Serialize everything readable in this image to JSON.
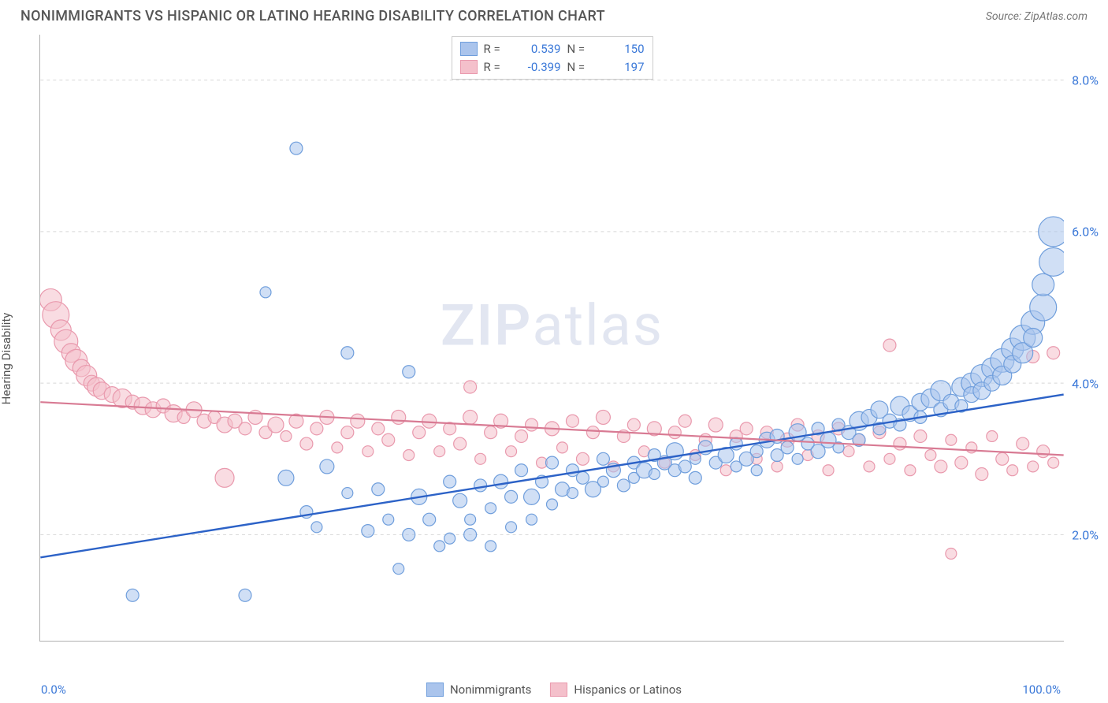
{
  "header": {
    "title": "NONIMMIGRANTS VS HISPANIC OR LATINO HEARING DISABILITY CORRELATION CHART",
    "source_label": "Source:",
    "source_name": "ZipAtlas.com"
  },
  "watermark": {
    "part1": "ZIP",
    "part2": "atlas"
  },
  "chart": {
    "type": "scatter",
    "ylabel": "Hearing Disability",
    "xlim": [
      0,
      100
    ],
    "ylim": [
      0.6,
      8.6
    ],
    "x_ticks": [
      0,
      20,
      40,
      60,
      80,
      100
    ],
    "x_tick_labels_shown": {
      "min": "0.0%",
      "max": "100.0%"
    },
    "y_ticks": [
      2.0,
      4.0,
      6.0,
      8.0
    ],
    "y_tick_labels": [
      "2.0%",
      "4.0%",
      "6.0%",
      "8.0%"
    ],
    "grid_color": "#d8d8d8",
    "grid_dash": "4,4",
    "axis_color": "#b0b0b0",
    "background_color": "#ffffff",
    "label_color": "#555555",
    "tick_label_color": "#3a78d8"
  },
  "legend_top": {
    "rows": [
      {
        "swatch_fill": "#aac4ec",
        "swatch_border": "#6f9edc",
        "r_label": "R =",
        "r_value": "0.539",
        "n_label": "N =",
        "n_value": "150"
      },
      {
        "swatch_fill": "#f4c0cb",
        "swatch_border": "#e999ad",
        "r_label": "R =",
        "r_value": "-0.399",
        "n_label": "N =",
        "n_value": "197"
      }
    ]
  },
  "legend_bottom": {
    "items": [
      {
        "swatch_fill": "#aac4ec",
        "swatch_border": "#6f9edc",
        "label": "Nonimmigrants"
      },
      {
        "swatch_fill": "#f4c0cb",
        "swatch_border": "#e999ad",
        "label": "Hispanics or Latinos"
      }
    ]
  },
  "series": [
    {
      "name": "Nonimmigrants",
      "fill": "#aac4ec",
      "fill_opacity": 0.55,
      "stroke": "#6f9edc",
      "stroke_width": 1.2,
      "trend": {
        "color": "#2c62c7",
        "width": 2.4,
        "y_at_x0": 1.7,
        "y_at_x100": 3.85
      },
      "points": [
        {
          "x": 9,
          "y": 1.2,
          "r": 8
        },
        {
          "x": 20,
          "y": 1.2,
          "r": 8
        },
        {
          "x": 25,
          "y": 7.1,
          "r": 8
        },
        {
          "x": 22,
          "y": 5.2,
          "r": 7
        },
        {
          "x": 24,
          "y": 2.75,
          "r": 10
        },
        {
          "x": 26,
          "y": 2.3,
          "r": 8
        },
        {
          "x": 27,
          "y": 2.1,
          "r": 7
        },
        {
          "x": 28,
          "y": 2.9,
          "r": 9
        },
        {
          "x": 30,
          "y": 4.4,
          "r": 8
        },
        {
          "x": 30,
          "y": 2.55,
          "r": 7
        },
        {
          "x": 32,
          "y": 2.05,
          "r": 8
        },
        {
          "x": 33,
          "y": 2.6,
          "r": 8
        },
        {
          "x": 34,
          "y": 2.2,
          "r": 7
        },
        {
          "x": 35,
          "y": 1.55,
          "r": 7
        },
        {
          "x": 36,
          "y": 2.0,
          "r": 8
        },
        {
          "x": 36,
          "y": 4.15,
          "r": 8
        },
        {
          "x": 37,
          "y": 2.5,
          "r": 10
        },
        {
          "x": 38,
          "y": 2.2,
          "r": 8
        },
        {
          "x": 39,
          "y": 1.85,
          "r": 7
        },
        {
          "x": 40,
          "y": 2.7,
          "r": 8
        },
        {
          "x": 40,
          "y": 1.95,
          "r": 7
        },
        {
          "x": 41,
          "y": 2.45,
          "r": 9
        },
        {
          "x": 42,
          "y": 2.2,
          "r": 7
        },
        {
          "x": 42,
          "y": 2.0,
          "r": 8
        },
        {
          "x": 43,
          "y": 2.65,
          "r": 8
        },
        {
          "x": 44,
          "y": 2.35,
          "r": 7
        },
        {
          "x": 44,
          "y": 1.85,
          "r": 7
        },
        {
          "x": 45,
          "y": 2.7,
          "r": 9
        },
        {
          "x": 46,
          "y": 2.5,
          "r": 8
        },
        {
          "x": 46,
          "y": 2.1,
          "r": 7
        },
        {
          "x": 47,
          "y": 2.85,
          "r": 8
        },
        {
          "x": 48,
          "y": 2.5,
          "r": 10
        },
        {
          "x": 48,
          "y": 2.2,
          "r": 7
        },
        {
          "x": 49,
          "y": 2.7,
          "r": 8
        },
        {
          "x": 50,
          "y": 2.95,
          "r": 8
        },
        {
          "x": 50,
          "y": 2.4,
          "r": 7
        },
        {
          "x": 51,
          "y": 2.6,
          "r": 9
        },
        {
          "x": 52,
          "y": 2.85,
          "r": 8
        },
        {
          "x": 52,
          "y": 2.55,
          "r": 7
        },
        {
          "x": 53,
          "y": 2.75,
          "r": 8
        },
        {
          "x": 54,
          "y": 2.6,
          "r": 10
        },
        {
          "x": 55,
          "y": 3.0,
          "r": 8
        },
        {
          "x": 55,
          "y": 2.7,
          "r": 7
        },
        {
          "x": 56,
          "y": 2.85,
          "r": 9
        },
        {
          "x": 57,
          "y": 2.65,
          "r": 8
        },
        {
          "x": 58,
          "y": 2.95,
          "r": 8
        },
        {
          "x": 58,
          "y": 2.75,
          "r": 7
        },
        {
          "x": 59,
          "y": 2.85,
          "r": 10
        },
        {
          "x": 60,
          "y": 3.05,
          "r": 8
        },
        {
          "x": 60,
          "y": 2.8,
          "r": 7
        },
        {
          "x": 61,
          "y": 2.95,
          "r": 9
        },
        {
          "x": 62,
          "y": 2.85,
          "r": 8
        },
        {
          "x": 62,
          "y": 3.1,
          "r": 11
        },
        {
          "x": 63,
          "y": 2.9,
          "r": 8
        },
        {
          "x": 64,
          "y": 3.0,
          "r": 7
        },
        {
          "x": 64,
          "y": 2.75,
          "r": 8
        },
        {
          "x": 65,
          "y": 3.15,
          "r": 9
        },
        {
          "x": 66,
          "y": 2.95,
          "r": 8
        },
        {
          "x": 67,
          "y": 3.05,
          "r": 10
        },
        {
          "x": 68,
          "y": 2.9,
          "r": 7
        },
        {
          "x": 68,
          "y": 3.2,
          "r": 8
        },
        {
          "x": 69,
          "y": 3.0,
          "r": 9
        },
        {
          "x": 70,
          "y": 3.1,
          "r": 8
        },
        {
          "x": 70,
          "y": 2.85,
          "r": 7
        },
        {
          "x": 71,
          "y": 3.25,
          "r": 10
        },
        {
          "x": 72,
          "y": 3.05,
          "r": 8
        },
        {
          "x": 72,
          "y": 3.3,
          "r": 9
        },
        {
          "x": 73,
          "y": 3.15,
          "r": 8
        },
        {
          "x": 74,
          "y": 3.0,
          "r": 7
        },
        {
          "x": 74,
          "y": 3.35,
          "r": 11
        },
        {
          "x": 75,
          "y": 3.2,
          "r": 8
        },
        {
          "x": 76,
          "y": 3.1,
          "r": 9
        },
        {
          "x": 76,
          "y": 3.4,
          "r": 8
        },
        {
          "x": 77,
          "y": 3.25,
          "r": 10
        },
        {
          "x": 78,
          "y": 3.45,
          "r": 8
        },
        {
          "x": 78,
          "y": 3.15,
          "r": 7
        },
        {
          "x": 79,
          "y": 3.35,
          "r": 9
        },
        {
          "x": 80,
          "y": 3.5,
          "r": 12
        },
        {
          "x": 80,
          "y": 3.25,
          "r": 8
        },
        {
          "x": 81,
          "y": 3.55,
          "r": 10
        },
        {
          "x": 82,
          "y": 3.4,
          "r": 8
        },
        {
          "x": 82,
          "y": 3.65,
          "r": 11
        },
        {
          "x": 83,
          "y": 3.5,
          "r": 9
        },
        {
          "x": 84,
          "y": 3.7,
          "r": 12
        },
        {
          "x": 84,
          "y": 3.45,
          "r": 8
        },
        {
          "x": 85,
          "y": 3.6,
          "r": 10
        },
        {
          "x": 86,
          "y": 3.75,
          "r": 11
        },
        {
          "x": 86,
          "y": 3.55,
          "r": 8
        },
        {
          "x": 87,
          "y": 3.8,
          "r": 12
        },
        {
          "x": 88,
          "y": 3.65,
          "r": 9
        },
        {
          "x": 88,
          "y": 3.9,
          "r": 13
        },
        {
          "x": 89,
          "y": 3.75,
          "r": 10
        },
        {
          "x": 90,
          "y": 3.95,
          "r": 12
        },
        {
          "x": 90,
          "y": 3.7,
          "r": 8
        },
        {
          "x": 91,
          "y": 4.0,
          "r": 13
        },
        {
          "x": 91,
          "y": 3.85,
          "r": 10
        },
        {
          "x": 92,
          "y": 4.1,
          "r": 14
        },
        {
          "x": 92,
          "y": 3.9,
          "r": 11
        },
        {
          "x": 93,
          "y": 4.2,
          "r": 13
        },
        {
          "x": 93,
          "y": 4.0,
          "r": 10
        },
        {
          "x": 94,
          "y": 4.3,
          "r": 15
        },
        {
          "x": 94,
          "y": 4.1,
          "r": 12
        },
        {
          "x": 95,
          "y": 4.45,
          "r": 14
        },
        {
          "x": 95,
          "y": 4.25,
          "r": 11
        },
        {
          "x": 96,
          "y": 4.6,
          "r": 16
        },
        {
          "x": 96,
          "y": 4.4,
          "r": 13
        },
        {
          "x": 97,
          "y": 4.8,
          "r": 15
        },
        {
          "x": 97,
          "y": 4.6,
          "r": 12
        },
        {
          "x": 98,
          "y": 5.0,
          "r": 17
        },
        {
          "x": 98,
          "y": 5.3,
          "r": 14
        },
        {
          "x": 99,
          "y": 5.6,
          "r": 18
        },
        {
          "x": 99,
          "y": 6.0,
          "r": 19
        }
      ]
    },
    {
      "name": "Hispanics or Latinos",
      "fill": "#f4c0cb",
      "fill_opacity": 0.55,
      "stroke": "#e999ad",
      "stroke_width": 1.2,
      "trend": {
        "color": "#d87a93",
        "width": 2.2,
        "y_at_x0": 3.75,
        "y_at_x100": 3.05
      },
      "points": [
        {
          "x": 1,
          "y": 5.1,
          "r": 14
        },
        {
          "x": 1.5,
          "y": 4.9,
          "r": 17
        },
        {
          "x": 2,
          "y": 4.7,
          "r": 13
        },
        {
          "x": 2.5,
          "y": 4.55,
          "r": 15
        },
        {
          "x": 3,
          "y": 4.4,
          "r": 12
        },
        {
          "x": 3.5,
          "y": 4.3,
          "r": 14
        },
        {
          "x": 4,
          "y": 4.2,
          "r": 11
        },
        {
          "x": 4.5,
          "y": 4.1,
          "r": 13
        },
        {
          "x": 5,
          "y": 4.0,
          "r": 10
        },
        {
          "x": 5.5,
          "y": 3.95,
          "r": 12
        },
        {
          "x": 6,
          "y": 3.9,
          "r": 11
        },
        {
          "x": 7,
          "y": 3.85,
          "r": 10
        },
        {
          "x": 8,
          "y": 3.8,
          "r": 12
        },
        {
          "x": 9,
          "y": 3.75,
          "r": 9
        },
        {
          "x": 10,
          "y": 3.7,
          "r": 11
        },
        {
          "x": 11,
          "y": 3.65,
          "r": 10
        },
        {
          "x": 12,
          "y": 3.7,
          "r": 9
        },
        {
          "x": 13,
          "y": 3.6,
          "r": 11
        },
        {
          "x": 14,
          "y": 3.55,
          "r": 8
        },
        {
          "x": 15,
          "y": 3.65,
          "r": 10
        },
        {
          "x": 16,
          "y": 3.5,
          "r": 9
        },
        {
          "x": 17,
          "y": 3.55,
          "r": 8
        },
        {
          "x": 18,
          "y": 3.45,
          "r": 10
        },
        {
          "x": 18,
          "y": 2.75,
          "r": 12
        },
        {
          "x": 19,
          "y": 3.5,
          "r": 9
        },
        {
          "x": 20,
          "y": 3.4,
          "r": 8
        },
        {
          "x": 21,
          "y": 3.55,
          "r": 9
        },
        {
          "x": 22,
          "y": 3.35,
          "r": 8
        },
        {
          "x": 23,
          "y": 3.45,
          "r": 10
        },
        {
          "x": 24,
          "y": 3.3,
          "r": 7
        },
        {
          "x": 25,
          "y": 3.5,
          "r": 9
        },
        {
          "x": 26,
          "y": 3.2,
          "r": 8
        },
        {
          "x": 27,
          "y": 3.4,
          "r": 8
        },
        {
          "x": 28,
          "y": 3.55,
          "r": 9
        },
        {
          "x": 29,
          "y": 3.15,
          "r": 7
        },
        {
          "x": 30,
          "y": 3.35,
          "r": 8
        },
        {
          "x": 31,
          "y": 3.5,
          "r": 9
        },
        {
          "x": 32,
          "y": 3.1,
          "r": 7
        },
        {
          "x": 33,
          "y": 3.4,
          "r": 8
        },
        {
          "x": 34,
          "y": 3.25,
          "r": 8
        },
        {
          "x": 35,
          "y": 3.55,
          "r": 9
        },
        {
          "x": 36,
          "y": 3.05,
          "r": 7
        },
        {
          "x": 37,
          "y": 3.35,
          "r": 8
        },
        {
          "x": 38,
          "y": 3.5,
          "r": 9
        },
        {
          "x": 39,
          "y": 3.1,
          "r": 7
        },
        {
          "x": 40,
          "y": 3.4,
          "r": 8
        },
        {
          "x": 41,
          "y": 3.2,
          "r": 8
        },
        {
          "x": 42,
          "y": 3.55,
          "r": 9
        },
        {
          "x": 42,
          "y": 3.95,
          "r": 8
        },
        {
          "x": 43,
          "y": 3.0,
          "r": 7
        },
        {
          "x": 44,
          "y": 3.35,
          "r": 8
        },
        {
          "x": 45,
          "y": 3.5,
          "r": 9
        },
        {
          "x": 46,
          "y": 3.1,
          "r": 7
        },
        {
          "x": 47,
          "y": 3.3,
          "r": 8
        },
        {
          "x": 48,
          "y": 3.45,
          "r": 8
        },
        {
          "x": 49,
          "y": 2.95,
          "r": 7
        },
        {
          "x": 50,
          "y": 3.4,
          "r": 9
        },
        {
          "x": 51,
          "y": 3.15,
          "r": 7
        },
        {
          "x": 52,
          "y": 3.5,
          "r": 8
        },
        {
          "x": 53,
          "y": 3.0,
          "r": 8
        },
        {
          "x": 54,
          "y": 3.35,
          "r": 8
        },
        {
          "x": 55,
          "y": 3.55,
          "r": 9
        },
        {
          "x": 56,
          "y": 2.9,
          "r": 7
        },
        {
          "x": 57,
          "y": 3.3,
          "r": 8
        },
        {
          "x": 58,
          "y": 3.45,
          "r": 8
        },
        {
          "x": 59,
          "y": 3.1,
          "r": 7
        },
        {
          "x": 60,
          "y": 3.4,
          "r": 9
        },
        {
          "x": 61,
          "y": 2.95,
          "r": 7
        },
        {
          "x": 62,
          "y": 3.35,
          "r": 8
        },
        {
          "x": 63,
          "y": 3.5,
          "r": 8
        },
        {
          "x": 64,
          "y": 3.05,
          "r": 7
        },
        {
          "x": 65,
          "y": 3.25,
          "r": 8
        },
        {
          "x": 66,
          "y": 3.45,
          "r": 9
        },
        {
          "x": 67,
          "y": 2.85,
          "r": 7
        },
        {
          "x": 68,
          "y": 3.3,
          "r": 8
        },
        {
          "x": 69,
          "y": 3.4,
          "r": 8
        },
        {
          "x": 70,
          "y": 3.0,
          "r": 7
        },
        {
          "x": 71,
          "y": 3.35,
          "r": 8
        },
        {
          "x": 72,
          "y": 2.9,
          "r": 7
        },
        {
          "x": 73,
          "y": 3.25,
          "r": 9
        },
        {
          "x": 74,
          "y": 3.45,
          "r": 8
        },
        {
          "x": 75,
          "y": 3.05,
          "r": 7
        },
        {
          "x": 76,
          "y": 3.3,
          "r": 8
        },
        {
          "x": 77,
          "y": 2.85,
          "r": 7
        },
        {
          "x": 78,
          "y": 3.4,
          "r": 8
        },
        {
          "x": 79,
          "y": 3.1,
          "r": 7
        },
        {
          "x": 80,
          "y": 3.25,
          "r": 8
        },
        {
          "x": 81,
          "y": 2.9,
          "r": 7
        },
        {
          "x": 82,
          "y": 3.35,
          "r": 8
        },
        {
          "x": 83,
          "y": 4.5,
          "r": 8
        },
        {
          "x": 83,
          "y": 3.0,
          "r": 7
        },
        {
          "x": 84,
          "y": 3.2,
          "r": 8
        },
        {
          "x": 85,
          "y": 2.85,
          "r": 7
        },
        {
          "x": 86,
          "y": 3.3,
          "r": 8
        },
        {
          "x": 87,
          "y": 3.05,
          "r": 7
        },
        {
          "x": 88,
          "y": 2.9,
          "r": 8
        },
        {
          "x": 89,
          "y": 3.25,
          "r": 7
        },
        {
          "x": 89,
          "y": 1.75,
          "r": 7
        },
        {
          "x": 90,
          "y": 2.95,
          "r": 8
        },
        {
          "x": 91,
          "y": 3.15,
          "r": 7
        },
        {
          "x": 92,
          "y": 2.8,
          "r": 8
        },
        {
          "x": 93,
          "y": 3.3,
          "r": 7
        },
        {
          "x": 94,
          "y": 3.0,
          "r": 8
        },
        {
          "x": 95,
          "y": 2.85,
          "r": 7
        },
        {
          "x": 96,
          "y": 3.2,
          "r": 8
        },
        {
          "x": 97,
          "y": 4.35,
          "r": 8
        },
        {
          "x": 97,
          "y": 2.9,
          "r": 7
        },
        {
          "x": 98,
          "y": 3.1,
          "r": 8
        },
        {
          "x": 99,
          "y": 4.4,
          "r": 8
        },
        {
          "x": 99,
          "y": 2.95,
          "r": 7
        }
      ]
    }
  ]
}
